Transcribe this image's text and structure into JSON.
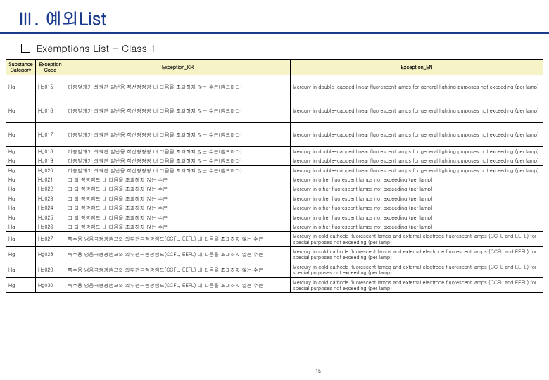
{
  "title": "Ⅲ. 예외List",
  "subtitle": "Exemptions List - Class 1",
  "headers": {
    "cat": "Substance Category",
    "code": "Exception Code",
    "kr": "Exception_KR",
    "en": "Exception_EN"
  },
  "rows": [
    {
      "cat": "Hg",
      "code": "Hg015",
      "kr": "이중덮개가 씌워진 일반용 직선형형광 내 다음을 초과하지 않는 수은(램프마다)",
      "en": "Mercury in double-capped linear fluorescent lamps for general lighting purposes not exceeding (per lamp)"
    },
    {
      "cat": "Hg",
      "code": "Hg016",
      "kr": "이중덮개가 씌워진 일반용 직선형형광 내 다음을 초과하지 않는 수은(램프마다)",
      "en": "Mercury in double-capped linear fluorescent lamps for general lighting purposes not exceeding (per lamp)"
    },
    {
      "cat": "Hg",
      "code": "Hg017",
      "kr": "이중덮개가 씌워진 일반용 직선형형광 내 다음을 초과하지 않는 수은(램프마다)",
      "en": "Mercury in double-capped linear fluorescent lamps for general lighting purposes not exceeding (per lamp)"
    },
    {
      "cat": "Hg",
      "code": "Hg018",
      "kr": "이중덮개가 씌워진 일반용 직선형형광 내 다음을 초과하지 않는 수은(램프마다)",
      "en": "Mercury in double-capped linear fluorescent lamps for general lighting purposes not exceeding (per lamp)"
    },
    {
      "cat": "Hg",
      "code": "Hg019",
      "kr": "이중덮개가 씌워진 일반용 직선형형광 내 다음을 초과하지 않는 수은(램프마다)",
      "en": "Mercury in double-capped linear fluorescent lamps for general lighting purposes not exceeding (per lamp)"
    },
    {
      "cat": "Hg",
      "code": "Hg020",
      "kr": "이중덮개가 씌워진 일반용 직선형형광 내 다음을 초과하지 않는 수은(램프마다)",
      "en": "Mercury in double-capped linear fluorescent lamps for general lighting purposes not exceeding (per lamp)"
    },
    {
      "cat": "Hg",
      "code": "Hg021",
      "kr": "그 외 형광램프 내 다음을 초과하지 않는 수은",
      "en": "Mercury in other fluorescent lamps not exceeding (per lamp)"
    },
    {
      "cat": "Hg",
      "code": "Hg022",
      "kr": "그 외 형광램프 내 다음을 초과하지 않는 수은",
      "en": "Mercury in other fluorescent lamps not exceeding (per lamp)"
    },
    {
      "cat": "Hg",
      "code": "Hg023",
      "kr": "그 외 형광램프 내 다음을 초과하지 않는 수은",
      "en": "Mercury in other fluorescent lamps not exceeding (per lamp)"
    },
    {
      "cat": "Hg",
      "code": "Hg024",
      "kr": "그 외 형광램프 내 다음을 초과하지 않는 수은",
      "en": "Mercury in other fluorescent lamps not exceeding (per lamp)"
    },
    {
      "cat": "Hg",
      "code": "Hg025",
      "kr": "그 외 형광램프 내 다음을 초과하지 않는 수은",
      "en": "Mercury in other fluorescent lamps not exceeding (per lamp)"
    },
    {
      "cat": "Hg",
      "code": "Hg026",
      "kr": "그 외 형광램프 내 다음을 초과하지 않는 수은",
      "en": "Mercury in other fluorescent lamps not exceeding (per lamp)"
    },
    {
      "cat": "Hg",
      "code": "Hg027",
      "kr": "특수용 냉음극형광램프와 외부전극형광램프(CCFL, EEFL) 내 다음을 초과하지 않는 수은",
      "en": "Mercury in cold cathode fluorescent lamps and external electrode fluorescent lamps (CCFL and EEFL) for special purposes not exceeding (per lamp)"
    },
    {
      "cat": "Hg",
      "code": "Hg028",
      "kr": "특수용 냉음극형광램프와 외부전극형광램프(CCFL, EEFL) 내 다음을 초과하지 않는 수은",
      "en": "Mercury in cold cathode fluorescent lamps and external electrode fluorescent lamps (CCFL and EEFL) for special purposes not exceeding (per lamp)"
    },
    {
      "cat": "Hg",
      "code": "Hg029",
      "kr": "특수용 냉음극형광램프와 외부전극형광램프(CCFL, EEFL) 내 다음을 초과하지 않는 수은",
      "en": "Mercury in cold cathode fluorescent lamps and external electrode fluorescent lamps (CCFL and EEFL) for special purposes not exceeding (per lamp)"
    },
    {
      "cat": "Hg",
      "code": "Hg030",
      "kr": "특수용 냉음극형광램프와 외부전극형광램프(CCFL, EEFL) 내 다음을 초과하지 않는 수은",
      "en": "Mercury in cold cathode fluorescent lamps and external electrode fluorescent lamps (CCFL and EEFL) for special purposes not exceeding (per lamp)"
    }
  ],
  "pageNum": "15",
  "colors": {
    "titleColor": "#1a3b8c",
    "headerBg": "#f6f3c6",
    "border": "#000000",
    "bg": "#ffffff"
  }
}
